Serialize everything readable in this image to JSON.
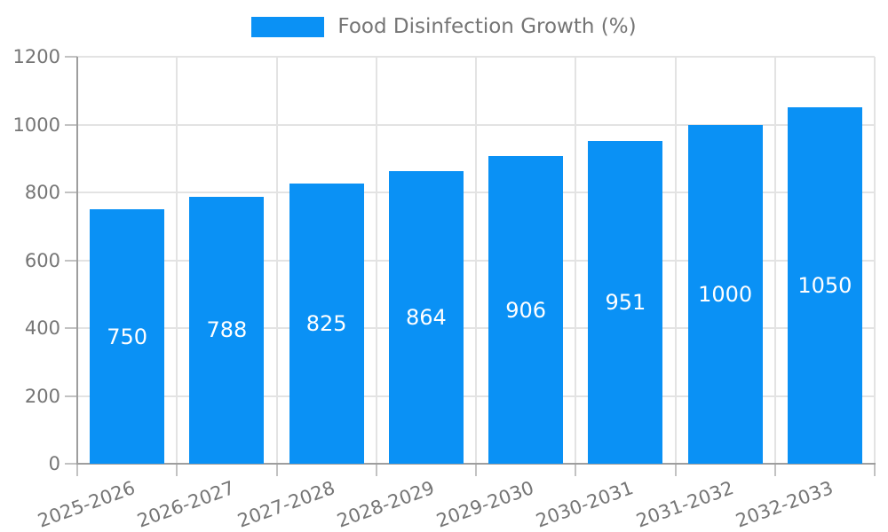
{
  "chart_data": {
    "type": "bar",
    "title": "",
    "legend": "Food Disinfection Growth (%)",
    "legend_position": "top-center",
    "categories": [
      "2025-2026",
      "2026-2027",
      "2027-2028",
      "2028-2029",
      "2029-2030",
      "2030-2031",
      "2031-2032",
      "2032-2033"
    ],
    "values": [
      750,
      788,
      825,
      864,
      906,
      951,
      1000,
      1050
    ],
    "xlabel": "",
    "ylabel": "",
    "ylim": [
      0,
      1200
    ],
    "yticks": [
      0,
      200,
      400,
      600,
      800,
      1000,
      1200
    ],
    "grid": true,
    "x_tick_label_rotation_deg": 20,
    "value_label_position": "inside-center",
    "colors": {
      "bar": "#0a91f5",
      "value_label": "#ffffff",
      "axis_text": "#757575",
      "axis_line": "#9e9e9e",
      "tick_line": "#c2c2c2",
      "gridline": "#e3e3e3",
      "background": "#ffffff"
    }
  }
}
